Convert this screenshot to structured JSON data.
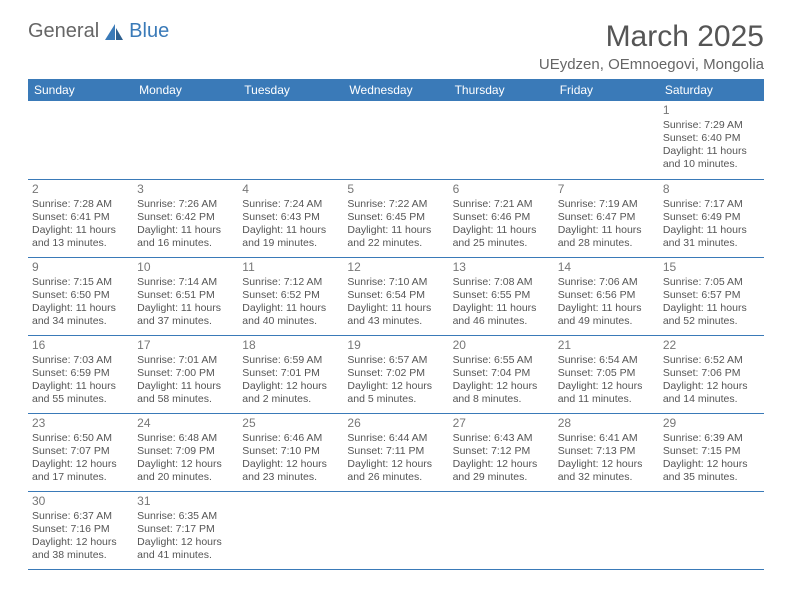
{
  "logo": {
    "text1": "General",
    "text2": "Blue",
    "sail_color": "#3a7ab8"
  },
  "title": "March 2025",
  "location": "UEydzen, OEmnoegovi, Mongolia",
  "weekdays": [
    "Sunday",
    "Monday",
    "Tuesday",
    "Wednesday",
    "Thursday",
    "Friday",
    "Saturday"
  ],
  "colors": {
    "header_bg": "#3a7ab8",
    "border": "#3a7ab8",
    "text": "#555"
  },
  "weeks": [
    [
      null,
      null,
      null,
      null,
      null,
      null,
      {
        "n": "1",
        "sr": "7:29 AM",
        "ss": "6:40 PM",
        "dl": "11 hours and 10 minutes."
      }
    ],
    [
      {
        "n": "2",
        "sr": "7:28 AM",
        "ss": "6:41 PM",
        "dl": "11 hours and 13 minutes."
      },
      {
        "n": "3",
        "sr": "7:26 AM",
        "ss": "6:42 PM",
        "dl": "11 hours and 16 minutes."
      },
      {
        "n": "4",
        "sr": "7:24 AM",
        "ss": "6:43 PM",
        "dl": "11 hours and 19 minutes."
      },
      {
        "n": "5",
        "sr": "7:22 AM",
        "ss": "6:45 PM",
        "dl": "11 hours and 22 minutes."
      },
      {
        "n": "6",
        "sr": "7:21 AM",
        "ss": "6:46 PM",
        "dl": "11 hours and 25 minutes."
      },
      {
        "n": "7",
        "sr": "7:19 AM",
        "ss": "6:47 PM",
        "dl": "11 hours and 28 minutes."
      },
      {
        "n": "8",
        "sr": "7:17 AM",
        "ss": "6:49 PM",
        "dl": "11 hours and 31 minutes."
      }
    ],
    [
      {
        "n": "9",
        "sr": "7:15 AM",
        "ss": "6:50 PM",
        "dl": "11 hours and 34 minutes."
      },
      {
        "n": "10",
        "sr": "7:14 AM",
        "ss": "6:51 PM",
        "dl": "11 hours and 37 minutes."
      },
      {
        "n": "11",
        "sr": "7:12 AM",
        "ss": "6:52 PM",
        "dl": "11 hours and 40 minutes."
      },
      {
        "n": "12",
        "sr": "7:10 AM",
        "ss": "6:54 PM",
        "dl": "11 hours and 43 minutes."
      },
      {
        "n": "13",
        "sr": "7:08 AM",
        "ss": "6:55 PM",
        "dl": "11 hours and 46 minutes."
      },
      {
        "n": "14",
        "sr": "7:06 AM",
        "ss": "6:56 PM",
        "dl": "11 hours and 49 minutes."
      },
      {
        "n": "15",
        "sr": "7:05 AM",
        "ss": "6:57 PM",
        "dl": "11 hours and 52 minutes."
      }
    ],
    [
      {
        "n": "16",
        "sr": "7:03 AM",
        "ss": "6:59 PM",
        "dl": "11 hours and 55 minutes."
      },
      {
        "n": "17",
        "sr": "7:01 AM",
        "ss": "7:00 PM",
        "dl": "11 hours and 58 minutes."
      },
      {
        "n": "18",
        "sr": "6:59 AM",
        "ss": "7:01 PM",
        "dl": "12 hours and 2 minutes."
      },
      {
        "n": "19",
        "sr": "6:57 AM",
        "ss": "7:02 PM",
        "dl": "12 hours and 5 minutes."
      },
      {
        "n": "20",
        "sr": "6:55 AM",
        "ss": "7:04 PM",
        "dl": "12 hours and 8 minutes."
      },
      {
        "n": "21",
        "sr": "6:54 AM",
        "ss": "7:05 PM",
        "dl": "12 hours and 11 minutes."
      },
      {
        "n": "22",
        "sr": "6:52 AM",
        "ss": "7:06 PM",
        "dl": "12 hours and 14 minutes."
      }
    ],
    [
      {
        "n": "23",
        "sr": "6:50 AM",
        "ss": "7:07 PM",
        "dl": "12 hours and 17 minutes."
      },
      {
        "n": "24",
        "sr": "6:48 AM",
        "ss": "7:09 PM",
        "dl": "12 hours and 20 minutes."
      },
      {
        "n": "25",
        "sr": "6:46 AM",
        "ss": "7:10 PM",
        "dl": "12 hours and 23 minutes."
      },
      {
        "n": "26",
        "sr": "6:44 AM",
        "ss": "7:11 PM",
        "dl": "12 hours and 26 minutes."
      },
      {
        "n": "27",
        "sr": "6:43 AM",
        "ss": "7:12 PM",
        "dl": "12 hours and 29 minutes."
      },
      {
        "n": "28",
        "sr": "6:41 AM",
        "ss": "7:13 PM",
        "dl": "12 hours and 32 minutes."
      },
      {
        "n": "29",
        "sr": "6:39 AM",
        "ss": "7:15 PM",
        "dl": "12 hours and 35 minutes."
      }
    ],
    [
      {
        "n": "30",
        "sr": "6:37 AM",
        "ss": "7:16 PM",
        "dl": "12 hours and 38 minutes."
      },
      {
        "n": "31",
        "sr": "6:35 AM",
        "ss": "7:17 PM",
        "dl": "12 hours and 41 minutes."
      },
      null,
      null,
      null,
      null,
      null
    ]
  ],
  "labels": {
    "sunrise": "Sunrise:",
    "sunset": "Sunset:",
    "daylight": "Daylight:"
  }
}
